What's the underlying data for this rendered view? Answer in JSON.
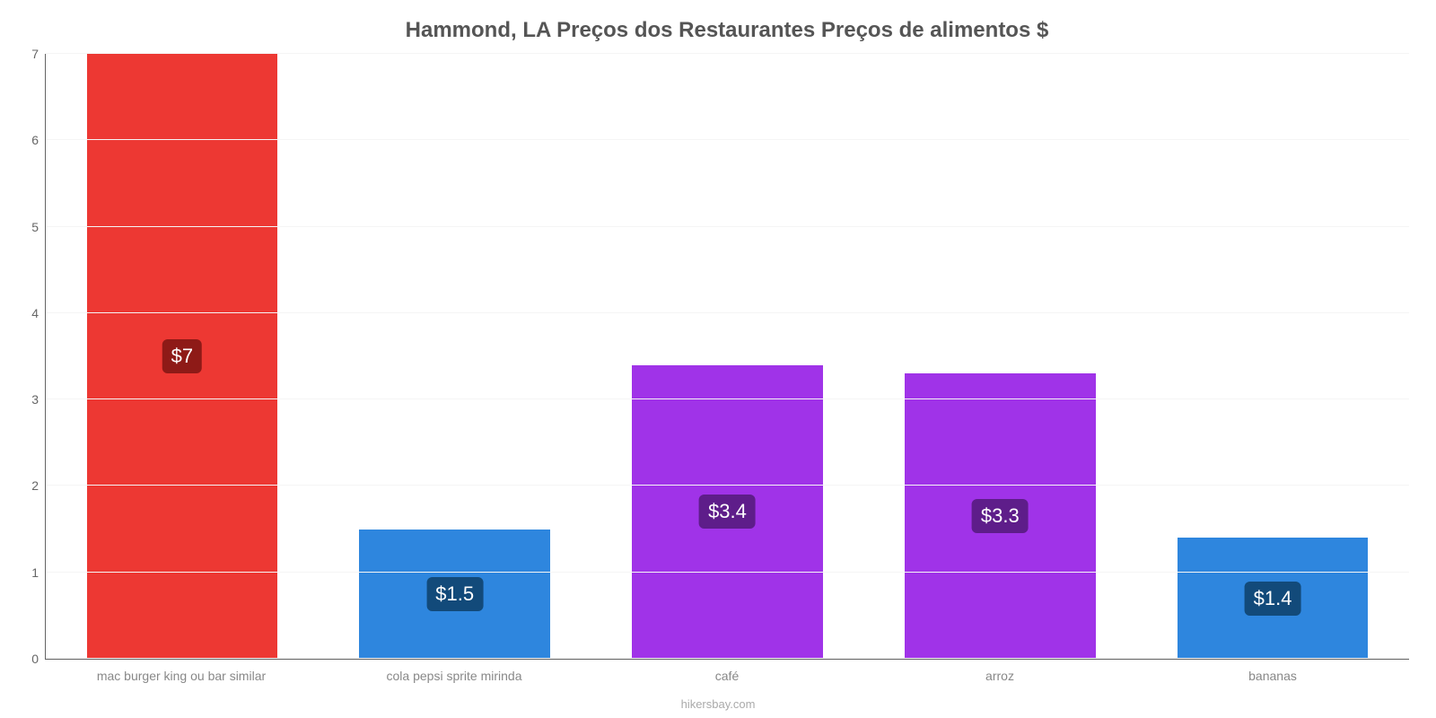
{
  "chart": {
    "type": "bar",
    "title": "Hammond, LA Preços dos Restaurantes Preços de alimentos $",
    "title_fontsize": 24,
    "title_color": "#555555",
    "background_color": "#ffffff",
    "grid_color": "#f5f5f5",
    "axis_color": "#646464",
    "tick_label_color": "#666666",
    "x_label_color": "#888888",
    "label_fontsize": 14,
    "value_label_fontsize": 22,
    "value_label_text_color": "#ffffff",
    "ylim": [
      0,
      7
    ],
    "ytick_step": 1,
    "yticks": [
      0,
      1,
      2,
      3,
      4,
      5,
      6,
      7
    ],
    "bar_width": 0.7,
    "source_text": "hikersbay.com",
    "source_color": "#aaaaaa",
    "categories": [
      "mac burger king ou bar similar",
      "cola pepsi sprite mirinda",
      "café",
      "arroz",
      "bananas"
    ],
    "values": [
      7,
      1.5,
      3.4,
      3.3,
      1.4
    ],
    "value_labels": [
      "$7",
      "$1.5",
      "$3.4",
      "$3.3",
      "$1.4"
    ],
    "bar_colors": [
      "#ed3833",
      "#2e86de",
      "#a033e8",
      "#a033e8",
      "#2e86de"
    ],
    "value_label_bg_colors": [
      "#8e1a17",
      "#124a7a",
      "#5e1d8a",
      "#5e1d8a",
      "#124a7a"
    ]
  }
}
